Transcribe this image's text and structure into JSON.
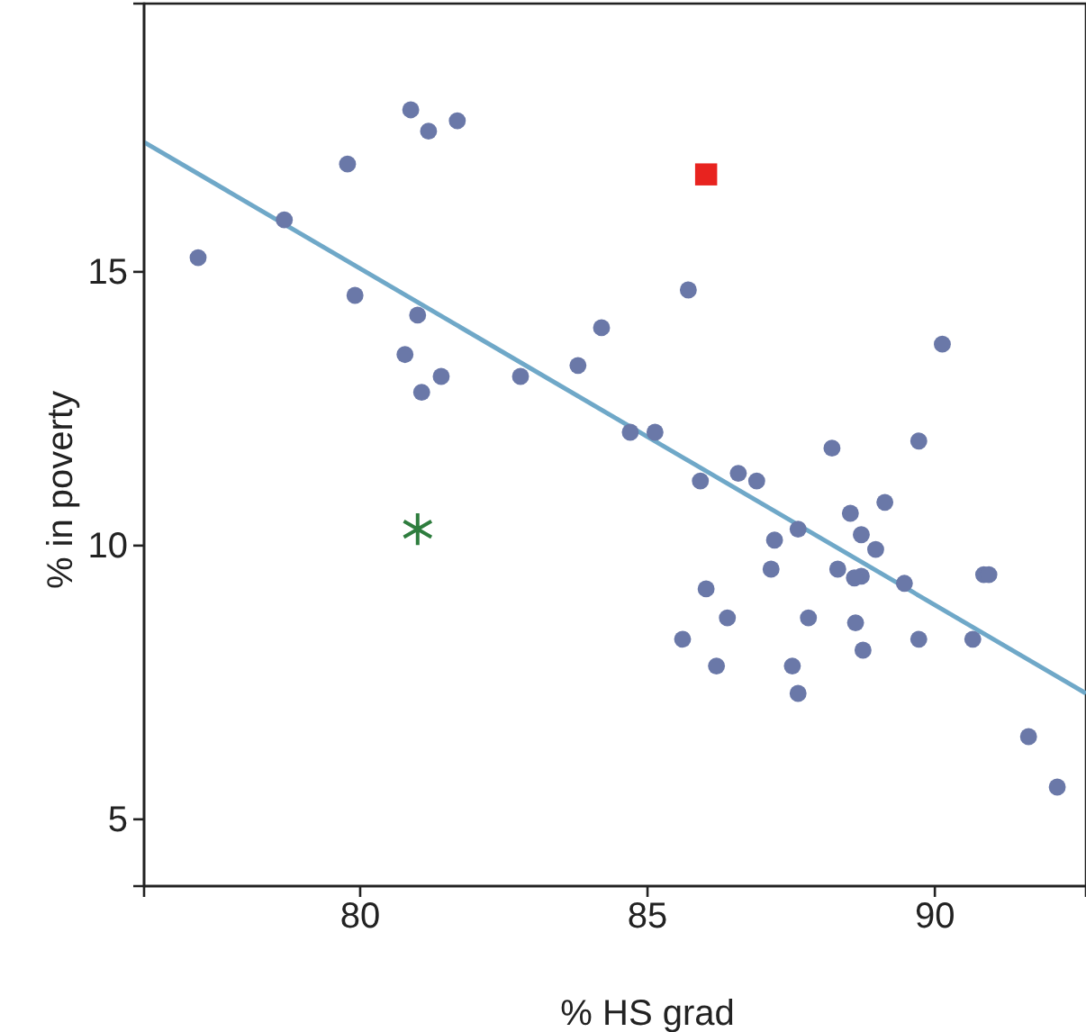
{
  "chart_data": {
    "type": "scatter",
    "xlabel": "% HS grad",
    "ylabel": "% in poverty",
    "xlim": [
      76.24,
      92.63
    ],
    "ylim": [
      3.78,
      19.9
    ],
    "xticks": [
      80,
      85,
      90
    ],
    "yticks": [
      5,
      10,
      15
    ],
    "grid": false,
    "marker": "circle",
    "series": [
      {
        "color": "#6a78a8",
        "x": [
          77.18,
          78.68,
          79.78,
          79.91,
          80.88,
          81.19,
          81.69,
          81.0,
          80.78,
          81.07,
          81.41,
          82.79,
          84.2,
          83.79,
          84.7,
          85.13,
          85.71,
          85.92,
          86.58,
          86.9,
          88.21,
          90.13,
          89.72,
          86.02,
          85.61,
          86.39,
          86.2,
          87.21,
          87.15,
          87.62,
          87.8,
          87.52,
          87.62,
          88.31,
          88.53,
          88.72,
          88.97,
          88.72,
          88.6,
          89.13,
          88.62,
          88.75,
          89.47,
          89.72,
          90.85,
          90.94,
          90.66,
          91.63,
          92.13
        ],
        "values": [
          15.26,
          15.95,
          16.97,
          14.57,
          17.96,
          17.57,
          17.76,
          14.21,
          13.49,
          12.8,
          13.09,
          13.09,
          13.98,
          13.29,
          12.07,
          12.07,
          14.67,
          11.18,
          11.32,
          11.18,
          11.78,
          13.68,
          11.91,
          9.21,
          8.29,
          8.68,
          7.8,
          10.1,
          9.57,
          10.3,
          8.68,
          7.8,
          7.3,
          9.57,
          10.59,
          10.2,
          9.93,
          9.44,
          9.41,
          10.79,
          8.59,
          8.09,
          9.31,
          8.29,
          9.47,
          9.47,
          8.29,
          6.51,
          5.59
        ]
      },
      {
        "color": "#e8231f",
        "marker": "square",
        "x": [
          86.02
        ],
        "values": [
          16.78
        ]
      },
      {
        "color": "#2e7d3e",
        "marker": "cross",
        "x": [
          81.0
        ],
        "values": [
          10.3
        ]
      },
      {
        "type": "line",
        "color": "#6fa8c8",
        "marker": "none",
        "x": [
          76.24,
          92.63
        ],
        "values": [
          17.37,
          7.3
        ]
      }
    ]
  }
}
